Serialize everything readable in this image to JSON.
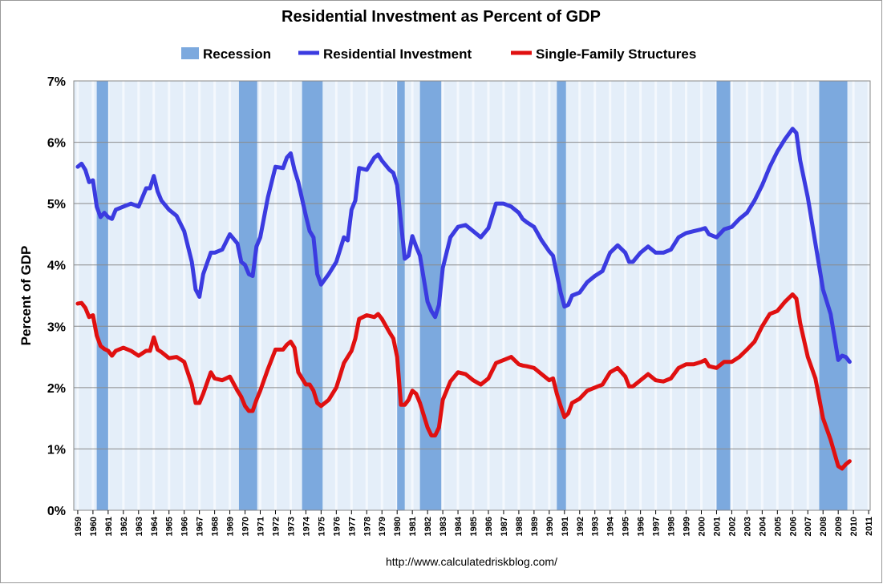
{
  "chart_data": {
    "type": "line",
    "title": "Residential Investment as Percent of GDP",
    "y_label": "Percent of GDP",
    "source": "http://www.calculatedriskblog.com/",
    "recession": {
      "name": "Recession",
      "color": "#7ca9de",
      "periods": [
        [
          1960.25,
          1961.0
        ],
        [
          1969.6,
          1970.8
        ],
        [
          1973.75,
          1975.1
        ],
        [
          1980.0,
          1980.5
        ],
        [
          1981.5,
          1982.9
        ],
        [
          1990.5,
          1991.1
        ],
        [
          2001.0,
          2001.9
        ],
        [
          2007.75,
          2009.6
        ]
      ]
    },
    "x": [
      1959,
      1959.25,
      1959.5,
      1959.75,
      1960,
      1960.25,
      1960.5,
      1960.75,
      1961,
      1961.25,
      1961.5,
      1962,
      1962.5,
      1963,
      1963.5,
      1963.75,
      1964,
      1964.25,
      1964.5,
      1965,
      1965.5,
      1966,
      1966.5,
      1966.75,
      1967,
      1967.25,
      1967.75,
      1968,
      1968.5,
      1969,
      1969.5,
      1969.75,
      1970,
      1970.25,
      1970.5,
      1970.75,
      1971,
      1971.5,
      1972,
      1972.5,
      1972.75,
      1973,
      1973.25,
      1973.5,
      1974,
      1974.25,
      1974.5,
      1974.75,
      1975,
      1975.5,
      1976,
      1976.5,
      1976.75,
      1977,
      1977.25,
      1977.5,
      1978,
      1978.5,
      1978.75,
      1979,
      1979.5,
      1979.75,
      1980,
      1980.25,
      1980.5,
      1980.75,
      1981,
      1981.25,
      1981.5,
      1982,
      1982.25,
      1982.5,
      1982.75,
      1983,
      1983.5,
      1984,
      1984.5,
      1985,
      1985.5,
      1986,
      1986.5,
      1987,
      1987.5,
      1988,
      1988.25,
      1988.5,
      1989,
      1989.5,
      1990,
      1990.25,
      1990.5,
      1990.75,
      1991,
      1991.25,
      1991.5,
      1992,
      1992.5,
      1993,
      1993.5,
      1994,
      1994.5,
      1995,
      1995.25,
      1995.5,
      1996,
      1996.5,
      1997,
      1997.5,
      1998,
      1998.5,
      1999,
      1999.5,
      2000,
      2000.25,
      2000.5,
      2001,
      2001.5,
      2002,
      2002.5,
      2003,
      2003.5,
      2004,
      2004.5,
      2005,
      2005.5,
      2006,
      2006.25,
      2006.5,
      2007,
      2007.5,
      2008,
      2008.5,
      2009,
      2009.25,
      2009.5,
      2009.75
    ],
    "series": [
      {
        "name": "Residential Investment",
        "color": "#3b3be0",
        "values": [
          5.6,
          5.65,
          5.55,
          5.35,
          5.38,
          4.95,
          4.78,
          4.85,
          4.78,
          4.75,
          4.9,
          4.95,
          5.0,
          4.95,
          5.25,
          5.25,
          5.45,
          5.2,
          5.05,
          4.9,
          4.8,
          4.55,
          4.05,
          3.6,
          3.48,
          3.85,
          4.2,
          4.2,
          4.25,
          4.5,
          4.35,
          4.05,
          4.0,
          3.85,
          3.82,
          4.3,
          4.45,
          5.1,
          5.6,
          5.58,
          5.75,
          5.82,
          5.55,
          5.35,
          4.8,
          4.55,
          4.45,
          3.85,
          3.68,
          3.85,
          4.05,
          4.45,
          4.4,
          4.9,
          5.05,
          5.58,
          5.55,
          5.75,
          5.8,
          5.7,
          5.55,
          5.5,
          5.3,
          4.7,
          4.1,
          4.15,
          4.47,
          4.3,
          4.15,
          3.4,
          3.25,
          3.15,
          3.35,
          3.95,
          4.45,
          4.62,
          4.65,
          4.55,
          4.45,
          4.6,
          5.0,
          5.0,
          4.95,
          4.85,
          4.75,
          4.7,
          4.62,
          4.4,
          4.22,
          4.15,
          3.85,
          3.55,
          3.32,
          3.35,
          3.5,
          3.55,
          3.72,
          3.82,
          3.9,
          4.2,
          4.32,
          4.2,
          4.05,
          4.05,
          4.2,
          4.3,
          4.2,
          4.2,
          4.25,
          4.45,
          4.52,
          4.55,
          4.58,
          4.6,
          4.5,
          4.45,
          4.58,
          4.62,
          4.75,
          4.85,
          5.05,
          5.3,
          5.6,
          5.85,
          6.05,
          6.22,
          6.15,
          5.7,
          5.1,
          4.35,
          3.6,
          3.2,
          2.45,
          2.52,
          2.5,
          2.42
        ]
      },
      {
        "name": "Single-Family Structures",
        "color": "#e01010",
        "values": [
          3.37,
          3.38,
          3.3,
          3.15,
          3.18,
          2.85,
          2.68,
          2.63,
          2.6,
          2.52,
          2.6,
          2.65,
          2.6,
          2.52,
          2.6,
          2.6,
          2.82,
          2.62,
          2.58,
          2.48,
          2.5,
          2.42,
          2.05,
          1.75,
          1.75,
          1.9,
          2.25,
          2.15,
          2.12,
          2.18,
          1.95,
          1.85,
          1.7,
          1.62,
          1.62,
          1.8,
          1.95,
          2.3,
          2.62,
          2.62,
          2.7,
          2.75,
          2.65,
          2.25,
          2.05,
          2.05,
          1.95,
          1.75,
          1.7,
          1.8,
          2.0,
          2.4,
          2.5,
          2.6,
          2.8,
          3.12,
          3.18,
          3.15,
          3.2,
          3.12,
          2.9,
          2.8,
          2.5,
          1.72,
          1.72,
          1.8,
          1.95,
          1.9,
          1.75,
          1.35,
          1.22,
          1.22,
          1.35,
          1.8,
          2.1,
          2.25,
          2.22,
          2.12,
          2.05,
          2.15,
          2.4,
          2.45,
          2.5,
          2.38,
          2.36,
          2.35,
          2.32,
          2.22,
          2.12,
          2.15,
          1.9,
          1.7,
          1.52,
          1.58,
          1.75,
          1.82,
          1.95,
          2.0,
          2.05,
          2.25,
          2.32,
          2.18,
          2.02,
          2.02,
          2.12,
          2.22,
          2.12,
          2.1,
          2.15,
          2.32,
          2.38,
          2.38,
          2.42,
          2.45,
          2.35,
          2.32,
          2.42,
          2.42,
          2.5,
          2.62,
          2.75,
          3.0,
          3.2,
          3.25,
          3.4,
          3.52,
          3.45,
          3.05,
          2.5,
          2.15,
          1.5,
          1.15,
          0.72,
          0.68,
          0.75,
          0.8
        ]
      }
    ],
    "xlim": [
      1958.74,
      2011.1
    ],
    "xticks": [
      1959,
      1960,
      1961,
      1962,
      1963,
      1964,
      1965,
      1966,
      1967,
      1968,
      1969,
      1970,
      1971,
      1972,
      1973,
      1974,
      1975,
      1976,
      1977,
      1978,
      1979,
      1980,
      1981,
      1982,
      1983,
      1984,
      1985,
      1986,
      1987,
      1988,
      1989,
      1990,
      1991,
      1992,
      1993,
      1994,
      1995,
      1996,
      1997,
      1998,
      1999,
      2000,
      2001,
      2002,
      2003,
      2004,
      2005,
      2006,
      2007,
      2008,
      2009,
      2010,
      2011
    ],
    "ylim": [
      0,
      7
    ],
    "yticks": [
      {
        "value": 0,
        "label": "0%"
      },
      {
        "value": 1,
        "label": "1%"
      },
      {
        "value": 2,
        "label": "2%"
      },
      {
        "value": 3,
        "label": "3%"
      },
      {
        "value": 4,
        "label": "4%"
      },
      {
        "value": 5,
        "label": "5%"
      },
      {
        "value": 6,
        "label": "6%"
      },
      {
        "value": 7,
        "label": "7%"
      }
    ],
    "grid": true
  }
}
